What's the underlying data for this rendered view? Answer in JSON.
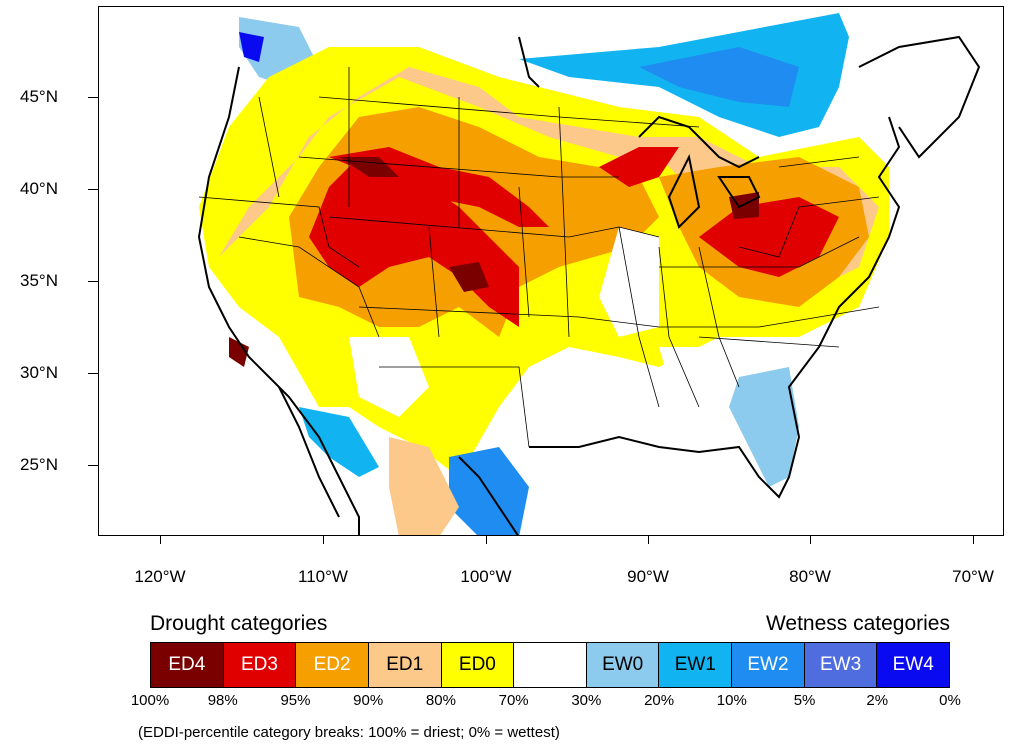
{
  "axes": {
    "y_labels": [
      "45°N",
      "40°N",
      "35°N",
      "30°N",
      "25°N"
    ],
    "x_labels": [
      "120°W",
      "110°W",
      "100°W",
      "90°W",
      "80°W",
      "70°W"
    ]
  },
  "legend": {
    "drought_title": "Drought categories",
    "wetness_title": "Wetness categories",
    "categories": [
      {
        "label": "ED4",
        "color": "#7a0000",
        "text_color": "#ffffff"
      },
      {
        "label": "ED3",
        "color": "#e00000",
        "text_color": "#ffffff"
      },
      {
        "label": "ED2",
        "color": "#f5a000",
        "text_color": "#ffffff"
      },
      {
        "label": "ED1",
        "color": "#fcc98a",
        "text_color": "#000000"
      },
      {
        "label": "ED0",
        "color": "#ffff00",
        "text_color": "#000000"
      },
      {
        "label": "",
        "color": "#ffffff",
        "text_color": "#000000"
      },
      {
        "label": "EW0",
        "color": "#8ccbee",
        "text_color": "#000000"
      },
      {
        "label": "EW1",
        "color": "#11b4f0",
        "text_color": "#000000"
      },
      {
        "label": "EW2",
        "color": "#1e8cf0",
        "text_color": "#ffffff"
      },
      {
        "label": "EW3",
        "color": "#4f6ddf",
        "text_color": "#ffffff"
      },
      {
        "label": "EW4",
        "color": "#0a0af0",
        "text_color": "#ffffff"
      }
    ],
    "breaks": [
      "100%",
      "98%",
      "95%",
      "90%",
      "80%",
      "70%",
      "30%",
      "20%",
      "10%",
      "5%",
      "2%",
      "0%"
    ]
  },
  "footnote": "(EDDI-percentile category breaks: 100% = driest; 0% = wettest)"
}
